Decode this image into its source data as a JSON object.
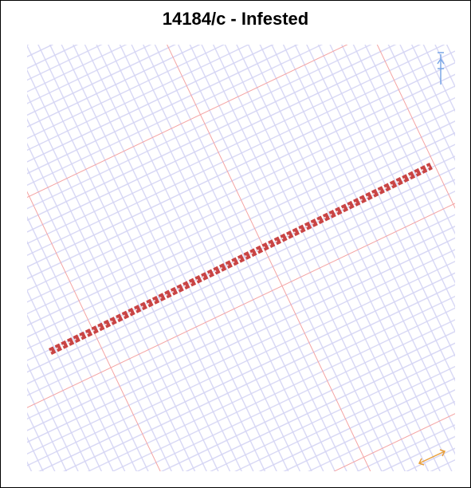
{
  "header": {
    "title": "14184/c - Infested"
  }
}
